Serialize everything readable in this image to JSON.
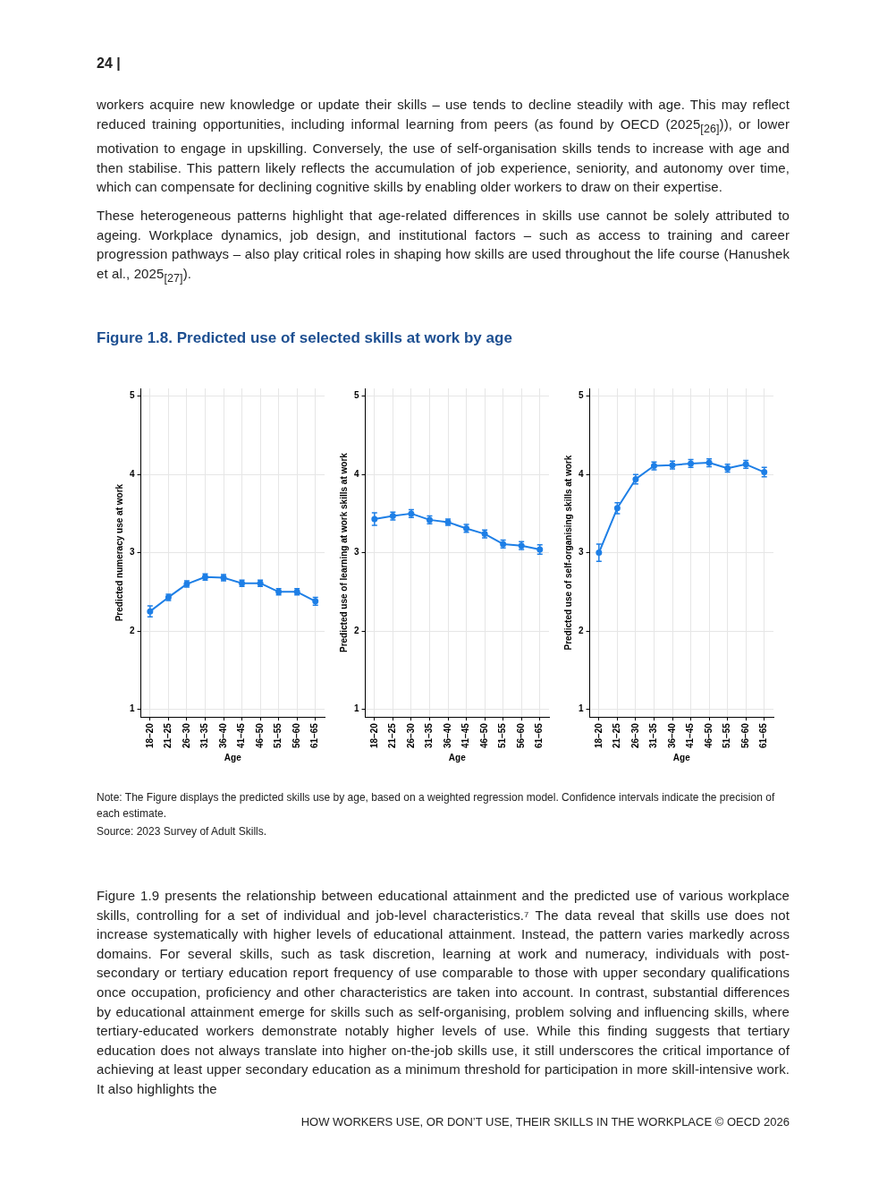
{
  "chart_data": [
    {
      "type": "other",
      "annotations": [
        "24 |",
        "workers acquire new knowledge or update their skills – use tends to decline steadily with age. This may reflect reduced training opportunities, including informal learning from peers (as found by OECD (2025$_{[26]}$)), or lower motivation to engage in upskilling. Conversely, the use of self-organisation skills tends to increase with age and then stabilise. This pattern likely reflects the accumulation of job experience, seniority, and autonomy over time, which can compensate for declining cognitive skills by enabling older workers to draw on their expertise.",
        "These heterogeneous patterns highlight that age-related differences in skills use cannot be solely attributed to ageing. Workplace dynamics, job design, and institutional factors – such as access to training and career progression pathways – also play critical roles in shaping how skills are used throughout the life course (Hanushek et al., 2025$_{[27]}$)."
      ]
    },
    {
      "type": "line",
      "title": "Figure 1.8. Predicted use of selected skills at work by age",
      "xlabel": "Age",
      "ylabel": "Predicted numeracy use at work",
      "categories": [
        "18–20",
        "21–25",
        "26–30",
        "31–35",
        "36–40",
        "41–45",
        "46–50",
        "51–55",
        "56–60",
        "61–65"
      ],
      "series": [
        {
          "color": "#1e7fe6",
          "values": [
            2.25,
            2.43,
            2.6,
            2.69,
            2.68,
            2.61,
            2.61,
            2.5,
            2.5,
            2.38
          ],
          "errors": [
            0.07,
            0.04,
            0.04,
            0.04,
            0.04,
            0.04,
            0.04,
            0.04,
            0.04,
            0.05
          ]
        }
      ],
      "ylim": [
        0.9,
        5.1
      ],
      "yticks": [
        1,
        2,
        3,
        4,
        5
      ],
      "grid": true,
      "marker": "circle",
      "line_style": "solid"
    },
    {
      "type": "line",
      "xlabel": "Age",
      "ylabel": "Predicted use of learning at work skills at work",
      "categories": [
        "18–20",
        "21–25",
        "26–30",
        "31–35",
        "36–40",
        "41–45",
        "46–50",
        "51–55",
        "56–60",
        "61–65"
      ],
      "series": [
        {
          "color": "#1e7fe6",
          "values": [
            3.43,
            3.47,
            3.5,
            3.42,
            3.39,
            3.31,
            3.24,
            3.11,
            3.09,
            3.04
          ],
          "errors": [
            0.08,
            0.05,
            0.05,
            0.05,
            0.04,
            0.05,
            0.05,
            0.05,
            0.05,
            0.06
          ]
        }
      ],
      "ylim": [
        0.9,
        5.1
      ],
      "yticks": [
        1,
        2,
        3,
        4,
        5
      ],
      "grid": true,
      "marker": "circle",
      "line_style": "solid"
    },
    {
      "type": "line",
      "xlabel": "Age",
      "ylabel": "Predicted use of self-organising skills at work",
      "categories": [
        "18–20",
        "21–25",
        "26–30",
        "31–35",
        "36–40",
        "41–45",
        "46–50",
        "51–55",
        "56–60",
        "61–65"
      ],
      "series": [
        {
          "color": "#1e7fe6",
          "values": [
            3.0,
            3.57,
            3.94,
            4.11,
            4.12,
            4.14,
            4.15,
            4.08,
            4.13,
            4.03
          ],
          "errors": [
            0.11,
            0.07,
            0.06,
            0.05,
            0.05,
            0.05,
            0.05,
            0.05,
            0.05,
            0.06
          ]
        }
      ],
      "ylim": [
        0.9,
        5.1
      ],
      "yticks": [
        1,
        2,
        3,
        4,
        5
      ],
      "grid": true,
      "marker": "circle",
      "line_style": "solid",
      "annotations": [
        "Note: The Figure displays the predicted skills use by age, based on a weighted regression model. Confidence intervals indicate the precision of each estimate.",
        "Source: 2023 Survey of Adult Skills."
      ]
    },
    {
      "type": "other",
      "annotations": [
        "Figure 1.9 presents the relationship between educational attainment and the predicted use of various workplace skills, controlling for a set of individual and job-level characteristics.⁷ The data reveal that skills use does not increase systematically with higher levels of educational attainment. Instead, the pattern varies markedly across domains. For several skills, such as task discretion, learning at work and numeracy, individuals with post-secondary or tertiary education report frequency of use comparable to those with upper secondary qualifications once occupation, proficiency and other characteristics are taken into account. In contrast, substantial differences by educational attainment emerge for skills such as self-organising, problem solving and influencing skills, where tertiary-educated workers demonstrate notably higher levels of use. While this finding suggests that tertiary education does not always translate into higher on-the-job skills use, it still underscores the critical importance of achieving at least upper secondary education as a minimum threshold for participation in more skill-intensive work. It also highlights the",
        "HOW WORKERS USE, OR DON’T USE, THEIR SKILLS IN THE WORKPLACE © OECD 2026"
      ]
    }
  ]
}
